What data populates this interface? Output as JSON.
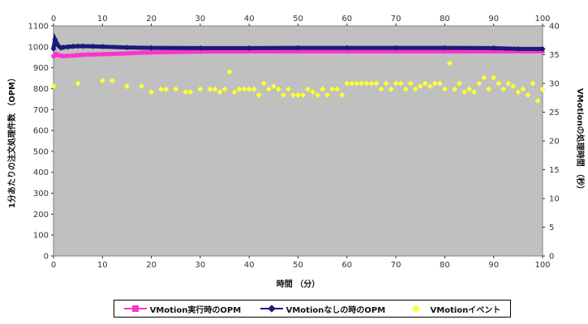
{
  "chart_data": {
    "type": "scatter",
    "xlabel": "時間 （分）",
    "ylabel": "1分あたりの注文処理件数 （OPM）",
    "y2label": "VMotionの処理時間 （秒）",
    "xlim": [
      0,
      100
    ],
    "ylim": [
      0,
      1100
    ],
    "y2lim": [
      0,
      40
    ],
    "x_ticks": [
      0,
      10,
      20,
      30,
      40,
      50,
      60,
      70,
      80,
      90,
      100
    ],
    "y_ticks": [
      0,
      100,
      200,
      300,
      400,
      500,
      600,
      700,
      800,
      900,
      1000,
      1100
    ],
    "y2_ticks": [
      0,
      5,
      10,
      15,
      20,
      25,
      30,
      35,
      40
    ],
    "grid": false,
    "legend_position": "bottom",
    "background": "#c0c0c0",
    "series": [
      {
        "name": "VMotion実行時のOPM",
        "axis": "left",
        "color": "#ff33cc",
        "style": "line-marker",
        "x": [
          0,
          0.5,
          1,
          1.5,
          2,
          3,
          4,
          5,
          6,
          7,
          8,
          9,
          10,
          12,
          14,
          16,
          18,
          20,
          25,
          30,
          40,
          50,
          60,
          70,
          80,
          90,
          100
        ],
        "values": [
          955,
          965,
          960,
          958,
          955,
          957,
          958,
          960,
          962,
          963,
          963,
          964,
          965,
          966,
          968,
          970,
          972,
          973,
          975,
          977,
          978,
          978,
          978,
          978,
          978,
          978,
          978
        ]
      },
      {
        "name": "VMotionなしの時のOPM",
        "axis": "left",
        "color": "#1a1a7a",
        "style": "line-marker",
        "x": [
          0,
          0.3,
          0.6,
          1,
          1.5,
          2,
          3,
          4,
          5,
          6,
          8,
          10,
          15,
          20,
          30,
          40,
          50,
          60,
          70,
          80,
          90,
          95,
          100
        ],
        "values": [
          990,
          1035,
          1020,
          1005,
          995,
          998,
          1000,
          1002,
          1003,
          1003,
          1002,
          1001,
          997,
          995,
          994,
          994,
          995,
          995,
          995,
          995,
          994,
          990,
          990
        ]
      },
      {
        "name": "VMotionイベント",
        "axis": "right",
        "color": "#ffff33",
        "style": "marker",
        "x": [
          0,
          5,
          10,
          12,
          15,
          18,
          20,
          22,
          23,
          25,
          27,
          28,
          30,
          32,
          33,
          34,
          35,
          36,
          37,
          38,
          39,
          40,
          41,
          42,
          43,
          44,
          45,
          46,
          47,
          48,
          49,
          50,
          51,
          52,
          53,
          54,
          55,
          56,
          57,
          58,
          59,
          60,
          61,
          62,
          63,
          64,
          65,
          66,
          67,
          68,
          69,
          70,
          71,
          72,
          73,
          74,
          75,
          76,
          77,
          78,
          79,
          80,
          81,
          82,
          83,
          84,
          85,
          86,
          87,
          88,
          89,
          90,
          91,
          92,
          93,
          94,
          95,
          96,
          97,
          98,
          99,
          100
        ],
        "values": [
          29.5,
          30,
          30.5,
          30.5,
          29.5,
          29.5,
          28.5,
          29,
          29,
          29,
          28.5,
          28.5,
          29,
          29,
          29,
          28.5,
          29,
          32,
          28.5,
          29,
          29,
          29,
          29,
          28,
          30,
          29,
          29.5,
          29,
          28,
          29,
          28,
          28,
          28,
          29,
          28.5,
          28,
          29,
          28,
          29,
          29,
          28,
          30,
          30,
          30,
          30,
          30,
          30,
          30,
          29,
          30,
          29,
          30,
          30,
          29,
          30,
          29,
          29.5,
          30,
          29.5,
          30,
          30,
          29,
          33.5,
          29,
          30,
          28.5,
          29,
          28.5,
          30,
          31,
          29,
          31,
          30,
          29,
          30,
          29.5,
          28.5,
          29,
          28,
          30,
          27,
          29
        ]
      }
    ]
  }
}
